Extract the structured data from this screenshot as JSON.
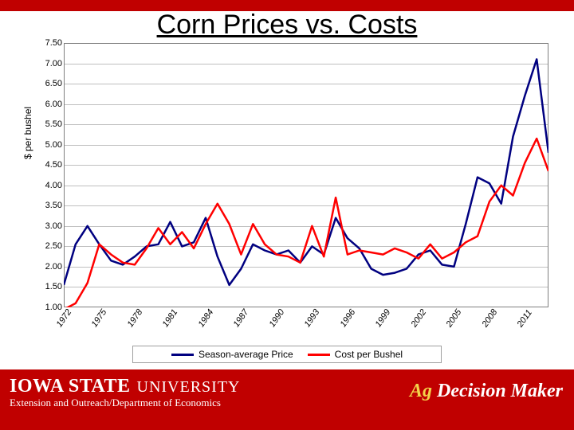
{
  "title": "Corn Prices vs. Costs",
  "chart": {
    "type": "line",
    "ylabel": "$ per bushel",
    "ylim": [
      1.0,
      7.5
    ],
    "ytick_step": 0.5,
    "yticks": [
      1.0,
      1.5,
      2.0,
      2.5,
      3.0,
      3.5,
      4.0,
      4.5,
      5.0,
      5.5,
      6.0,
      6.5,
      7.0,
      7.5
    ],
    "xticks": [
      "1972",
      "1975",
      "1978",
      "1981",
      "1984",
      "1987",
      "1990",
      "1993",
      "1996",
      "1999",
      "2002",
      "2005",
      "2008",
      "2011"
    ],
    "x_min": 1972,
    "x_max": 2012,
    "background_color": "#ffffff",
    "grid_color": "#bfbfbf",
    "border_color": "#7f7f7f",
    "axis_fontsize": 11,
    "line_width": 2.5,
    "series": [
      {
        "name": "Season-average Price",
        "color": "#000080",
        "values": [
          1.55,
          2.55,
          3.0,
          2.55,
          2.15,
          2.05,
          2.25,
          2.5,
          2.55,
          3.1,
          2.5,
          2.6,
          3.2,
          2.25,
          1.55,
          1.95,
          2.55,
          2.4,
          2.3,
          2.4,
          2.1,
          2.5,
          2.3,
          3.2,
          2.7,
          2.45,
          1.95,
          1.8,
          1.85,
          1.95,
          2.3,
          2.4,
          2.05,
          2.0,
          3.05,
          4.2,
          4.05,
          3.55,
          5.2,
          6.2,
          7.1,
          4.8
        ]
      },
      {
        "name": "Cost per Bushel",
        "color": "#ff0000",
        "values": [
          0.95,
          1.1,
          1.6,
          2.55,
          2.3,
          2.1,
          2.05,
          2.45,
          2.95,
          2.55,
          2.85,
          2.45,
          3.05,
          3.55,
          3.05,
          2.3,
          3.05,
          2.55,
          2.3,
          2.25,
          2.1,
          3.0,
          2.25,
          3.7,
          2.3,
          2.4,
          2.35,
          2.3,
          2.45,
          2.35,
          2.2,
          2.55,
          2.2,
          2.35,
          2.6,
          2.75,
          3.6,
          4.0,
          3.75,
          4.55,
          5.15,
          4.35
        ]
      }
    ]
  },
  "legend": {
    "items": [
      {
        "label": "Season-average Price",
        "color": "#000080"
      },
      {
        "label": "Cost per Bushel",
        "color": "#ff0000"
      }
    ]
  },
  "footer": {
    "isu_bold": "IOWA STATE",
    "isu_univ": "UNIVERSITY",
    "ext_line": "Extension and Outreach/Department of Economics",
    "agdm_ag": "Ag ",
    "agdm_dm": "Decision Maker"
  }
}
